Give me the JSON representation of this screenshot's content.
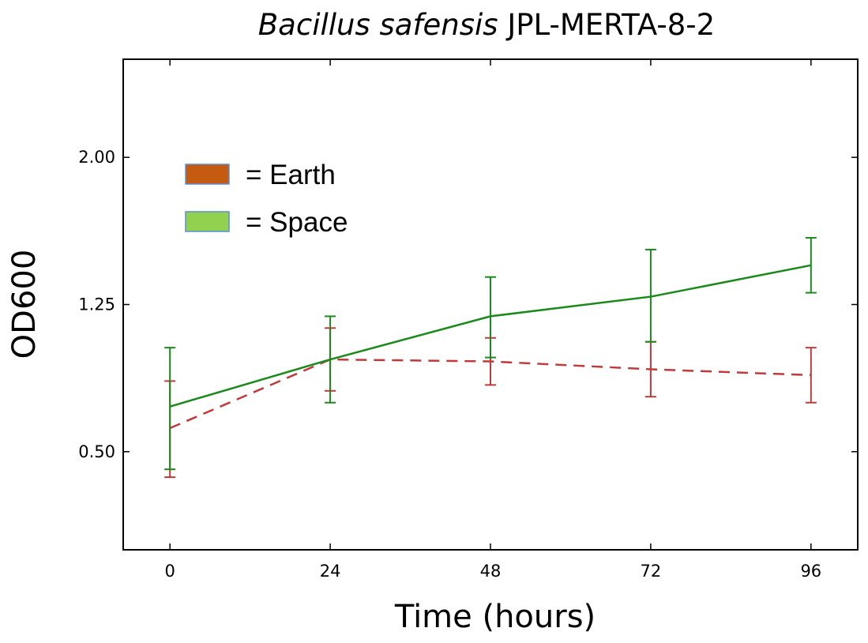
{
  "chart_data": {
    "type": "line",
    "title_italic": "Bacillus safensis",
    "title_rest": " JPL-MERTA-8-2",
    "xlabel": "Time (hours)",
    "ylabel": "OD600",
    "x": [
      0,
      24,
      48,
      72,
      96
    ],
    "x_ticks": [
      "0",
      "24",
      "48",
      "72",
      "96"
    ],
    "y_ticks": [
      "0.50",
      "1.25",
      "2.00"
    ],
    "y_tick_values": [
      0.5,
      1.25,
      2.0
    ],
    "xlim": [
      -7,
      103
    ],
    "ylim": [
      0.0,
      2.5
    ],
    "grid": false,
    "legend_placement": "upper-left",
    "series": [
      {
        "name": "Earth",
        "legend_label": "= Earth",
        "legend_color": "#c55a11",
        "line_color": "#c0393b",
        "line_style": "dashed",
        "values": [
          0.62,
          0.97,
          0.96,
          0.92,
          0.89
        ],
        "err_low": [
          0.37,
          0.81,
          0.84,
          0.78,
          0.75
        ],
        "err_high": [
          0.86,
          1.13,
          1.08,
          1.06,
          1.03
        ]
      },
      {
        "name": "Space",
        "legend_label": "= Space",
        "legend_color": "#92d050",
        "line_color": "#1a8a1a",
        "line_style": "solid",
        "values": [
          0.73,
          0.97,
          1.19,
          1.29,
          1.45
        ],
        "err_low": [
          0.41,
          0.75,
          0.98,
          1.06,
          1.31
        ],
        "err_high": [
          1.03,
          1.19,
          1.39,
          1.53,
          1.59
        ]
      }
    ]
  }
}
